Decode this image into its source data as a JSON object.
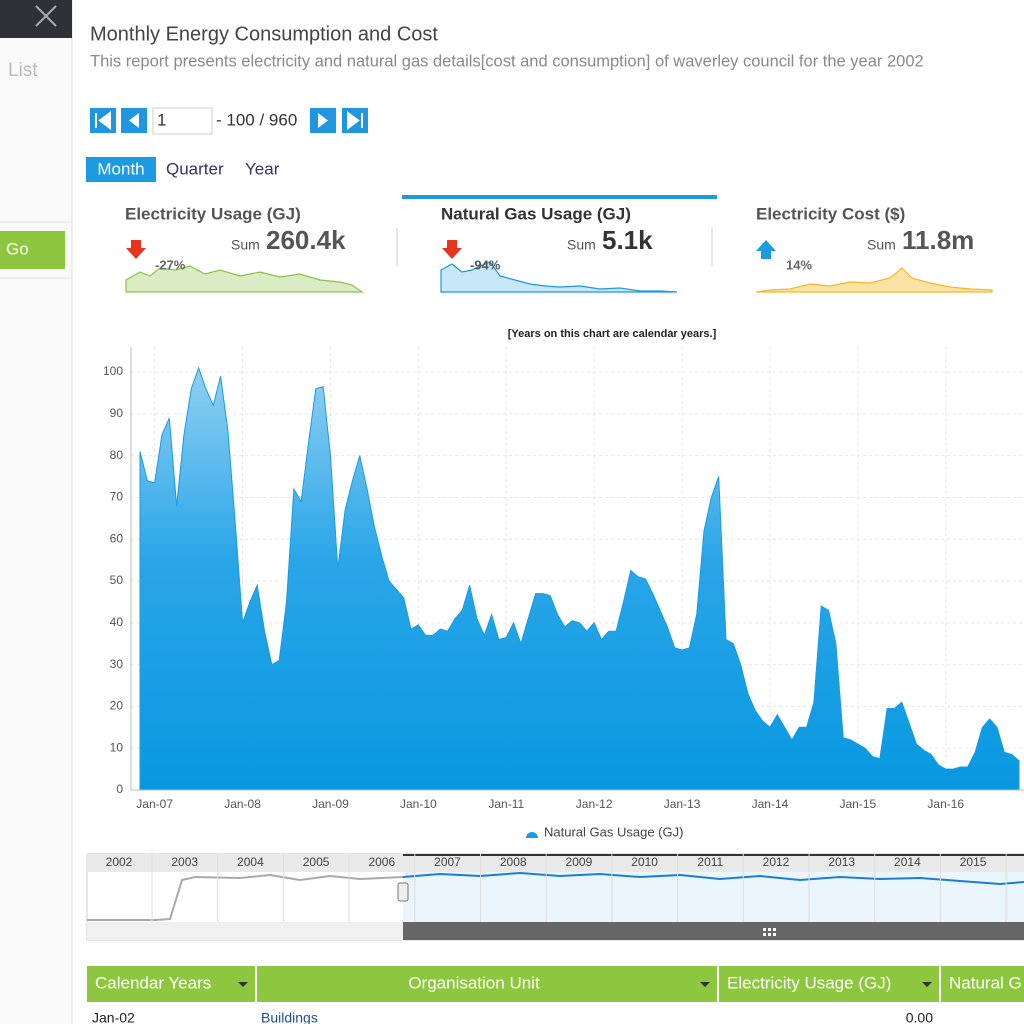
{
  "sidebar": {
    "list": "List",
    "go": "Go"
  },
  "header": {
    "title": "Monthly Energy Consumption and Cost",
    "subtitle": "This report presents electricity and natural gas details[cost and consumption] of waverley council for the year 2002"
  },
  "pager": {
    "page": "1",
    "range": "- 100 / 960"
  },
  "tabs": [
    "Month",
    "Quarter",
    "Year"
  ],
  "kpis": [
    {
      "title": "Electricity Usage (GJ)",
      "sum_label": "Sum",
      "value": "260.4k",
      "change": "-27%"
    },
    {
      "title": "Natural Gas Usage (GJ)",
      "sum_label": "Sum",
      "value": "5.1k",
      "change": "-94%"
    },
    {
      "title": "Electricity Cost ($)",
      "sum_label": "Sum",
      "value": "11.8m",
      "change": "14%"
    }
  ],
  "chart_data": {
    "type": "area",
    "annotation": "[Years on this chart are calendar years.]",
    "categories": [
      null,
      null,
      "Jan-07",
      null,
      null,
      null,
      null,
      null,
      null,
      null,
      null,
      null,
      null,
      null,
      "Jan-08",
      null,
      null,
      null,
      null,
      null,
      null,
      null,
      null,
      null,
      null,
      null,
      "Jan-09",
      null,
      null,
      null,
      null,
      null,
      null,
      null,
      null,
      null,
      null,
      null,
      "Jan-10",
      null,
      null,
      null,
      null,
      null,
      null,
      null,
      null,
      null,
      null,
      null,
      "Jan-11",
      null,
      null,
      null,
      null,
      null,
      null,
      null,
      null,
      null,
      null,
      null,
      "Jan-12",
      null,
      null,
      null,
      null,
      null,
      null,
      null,
      null,
      null,
      null,
      null,
      "Jan-13",
      null,
      null,
      null,
      null,
      null,
      null,
      null,
      null,
      null,
      null,
      null,
      "Jan-14",
      null,
      null,
      null,
      null,
      null,
      null,
      null,
      null,
      null,
      null,
      null,
      "Jan-15",
      null,
      null,
      null,
      null,
      null,
      null,
      null,
      null,
      null,
      null,
      null,
      "Jan-16",
      null,
      null,
      null,
      null,
      null,
      null,
      null,
      null,
      null,
      null
    ],
    "series": [
      {
        "name": "Natural Gas Usage (GJ)",
        "color": "#1a9be3",
        "values": [
          81,
          74,
          73.5,
          85,
          89,
          68,
          85,
          96,
          101,
          96,
          92,
          99,
          86,
          64,
          40,
          45,
          49,
          38,
          30,
          31,
          45,
          72,
          69,
          83,
          96,
          96.5,
          80,
          53,
          67,
          74,
          80,
          72,
          63,
          56,
          50,
          48,
          46,
          38.5,
          39.5,
          37,
          37,
          38.5,
          38,
          41,
          43,
          49,
          41,
          37,
          42,
          36,
          36.5,
          40,
          35,
          41,
          47,
          47,
          46.5,
          42,
          39,
          40.5,
          40,
          38,
          40,
          36,
          38,
          38,
          45,
          52.5,
          51,
          50.5,
          47,
          43,
          39,
          34,
          33.5,
          34,
          42,
          62,
          70,
          75,
          36,
          35,
          30,
          23,
          19,
          16.5,
          15,
          18,
          15,
          12,
          15,
          15,
          21,
          44,
          43,
          35,
          12.5,
          12,
          11,
          10,
          8,
          7.5,
          19.5,
          19.5,
          21,
          16,
          11,
          9.5,
          8.5,
          6,
          5,
          5,
          5.5,
          5.5,
          9,
          15,
          17,
          15,
          9,
          8.5,
          7
        ]
      }
    ],
    "ylim": [
      0,
      106
    ],
    "yticks": [
      0,
      10,
      20,
      30,
      40,
      50,
      60,
      70,
      80,
      90,
      100
    ],
    "grid": true
  },
  "navigator": {
    "years": [
      2002,
      2003,
      2004,
      2005,
      2006,
      2007,
      2008,
      2009,
      2010,
      2011,
      2012,
      2013,
      2014,
      2015
    ]
  },
  "table": {
    "columns": [
      "Calendar Years",
      "Organisation Unit",
      "Electricity Usage (GJ)",
      "Natural G"
    ],
    "rows": [
      [
        "Jan-02",
        "Buildings",
        "0.00"
      ]
    ]
  }
}
